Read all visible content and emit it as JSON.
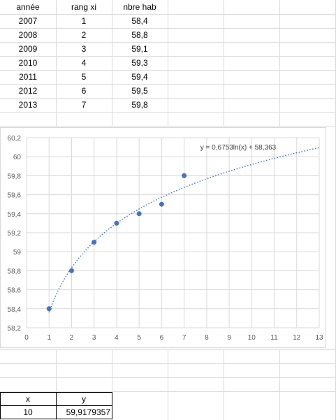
{
  "table": {
    "headers": [
      "année",
      "rang xi",
      "nbre hab"
    ],
    "rows": [
      [
        "2007",
        "1",
        "58,4"
      ],
      [
        "2008",
        "2",
        "58,8"
      ],
      [
        "2009",
        "3",
        "59,1"
      ],
      [
        "2010",
        "4",
        "59,3"
      ],
      [
        "2011",
        "5",
        "59,4"
      ],
      [
        "2012",
        "6",
        "59,5"
      ],
      [
        "2013",
        "7",
        "59,8"
      ]
    ]
  },
  "result": {
    "x_label": "x",
    "y_label": "y",
    "x_value": "10",
    "y_value": "59,9179357"
  },
  "chart_data": {
    "type": "scatter",
    "x": [
      1,
      2,
      3,
      4,
      5,
      6,
      7
    ],
    "y": [
      58.4,
      58.8,
      59.1,
      59.3,
      59.4,
      59.5,
      59.8
    ],
    "xlim": [
      0,
      13
    ],
    "ylim": [
      58.2,
      60.2
    ],
    "x_ticks": [
      "0",
      "1",
      "2",
      "3",
      "4",
      "5",
      "6",
      "7",
      "8",
      "9",
      "10",
      "11",
      "12",
      "13"
    ],
    "y_ticks": [
      "58,2",
      "58,4",
      "58,6",
      "58,8",
      "59",
      "59,2",
      "59,4",
      "59,6",
      "59,8",
      "60",
      "60,2"
    ],
    "grid": true,
    "point_color": "#4472c4",
    "trendline": {
      "type": "logarithmic",
      "a": 0.6753,
      "b": 58.363,
      "x_range": [
        1,
        13
      ],
      "label": "y = 0,6753ln(x) + 58,363",
      "color": "#4472c4"
    }
  }
}
